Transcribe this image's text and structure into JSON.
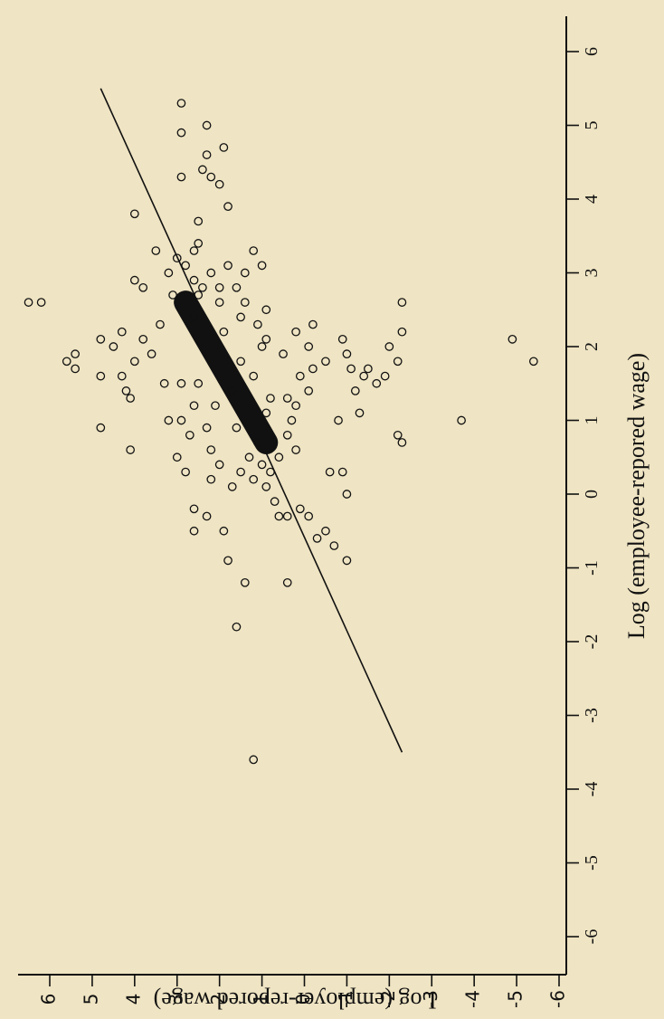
{
  "chart_data": {
    "type": "scatter",
    "orientation": "rotated-90-counterclockwise",
    "xlabel": "Log (employee-repored wage)",
    "ylabel": "Log (employer-repored wage)",
    "xlim": [
      -6,
      6
    ],
    "ylim": [
      -6,
      6
    ],
    "xticks": [
      "-6",
      "-5",
      "-4",
      "-3",
      "-2",
      "-1",
      "0",
      "1",
      "2",
      "3",
      "4",
      "5",
      "6"
    ],
    "yticks": [
      "-6",
      "-5",
      "-4",
      "-3",
      "-2",
      "-1",
      "0",
      "1",
      "2",
      "3",
      "4",
      "5",
      "6"
    ],
    "grid": false,
    "marker": "hollow-circle",
    "colors": {
      "background": "#efe4c3",
      "ink": "#111111"
    },
    "fit_line": {
      "x": [
        -3.5,
        5.5
      ],
      "y": [
        -2.3,
        4.8
      ]
    },
    "dense_core": {
      "x": [
        0.7,
        2.6
      ],
      "y": [
        0.9,
        2.8
      ]
    },
    "points": [
      [
        2.6,
        6.2
      ],
      [
        2.6,
        6.5
      ],
      [
        1.7,
        5.4
      ],
      [
        1.9,
        5.4
      ],
      [
        1.8,
        5.6
      ],
      [
        2.1,
        4.8
      ],
      [
        2.0,
        4.5
      ],
      [
        2.2,
        4.3
      ],
      [
        1.6,
        4.8
      ],
      [
        0.9,
        4.8
      ],
      [
        3.8,
        4.0
      ],
      [
        2.9,
        4.0
      ],
      [
        3.3,
        3.5
      ],
      [
        2.8,
        3.8
      ],
      [
        1.8,
        4.0
      ],
      [
        1.6,
        4.3
      ],
      [
        1.4,
        4.2
      ],
      [
        1.3,
        4.1
      ],
      [
        0.6,
        4.1
      ],
      [
        2.1,
        3.8
      ],
      [
        1.9,
        3.6
      ],
      [
        2.3,
        3.4
      ],
      [
        1.5,
        3.3
      ],
      [
        1.0,
        3.2
      ],
      [
        0.5,
        3.0
      ],
      [
        0.3,
        2.8
      ],
      [
        0.8,
        2.7
      ],
      [
        1.0,
        2.9
      ],
      [
        3.2,
        3.0
      ],
      [
        3.1,
        2.8
      ],
      [
        3.0,
        3.2
      ],
      [
        2.7,
        3.1
      ],
      [
        2.9,
        2.6
      ],
      [
        2.8,
        2.4
      ],
      [
        1.5,
        2.9
      ],
      [
        1.2,
        2.6
      ],
      [
        0.9,
        2.3
      ],
      [
        0.6,
        2.2
      ],
      [
        0.4,
        2.0
      ],
      [
        0.2,
        2.2
      ],
      [
        -0.2,
        2.6
      ],
      [
        -0.3,
        2.3
      ],
      [
        -0.5,
        2.6
      ],
      [
        -0.9,
        1.8
      ],
      [
        -1.2,
        1.4
      ],
      [
        -1.8,
        1.6
      ],
      [
        -1.2,
        0.4
      ],
      [
        -3.6,
        1.2
      ],
      [
        -0.5,
        1.9
      ],
      [
        0.1,
        1.7
      ],
      [
        0.3,
        1.5
      ],
      [
        0.5,
        1.3
      ],
      [
        0.7,
        1.1
      ],
      [
        0.3,
        0.8
      ],
      [
        0.1,
        0.9
      ],
      [
        -0.1,
        0.7
      ],
      [
        -0.3,
        0.6
      ],
      [
        -0.3,
        0.4
      ],
      [
        -0.2,
        0.1
      ],
      [
        -0.3,
        -0.1
      ],
      [
        -0.5,
        -0.5
      ],
      [
        -0.6,
        -0.3
      ],
      [
        -0.7,
        -0.7
      ],
      [
        -0.9,
        -1.0
      ],
      [
        0.3,
        -0.6
      ],
      [
        0.0,
        -1.0
      ],
      [
        0.6,
        0.2
      ],
      [
        0.8,
        0.4
      ],
      [
        1.0,
        0.3
      ],
      [
        1.2,
        0.2
      ],
      [
        1.3,
        0.4
      ],
      [
        1.4,
        -0.1
      ],
      [
        1.6,
        0.1
      ],
      [
        1.8,
        -0.5
      ],
      [
        1.7,
        -0.2
      ],
      [
        2.0,
        -0.1
      ],
      [
        2.2,
        0.2
      ],
      [
        2.3,
        -0.2
      ],
      [
        1.9,
        0.5
      ],
      [
        2.1,
        0.9
      ],
      [
        2.3,
        1.1
      ],
      [
        2.5,
        0.9
      ],
      [
        2.6,
        1.4
      ],
      [
        2.8,
        1.6
      ],
      [
        3.0,
        1.4
      ],
      [
        3.1,
        1.0
      ],
      [
        2.0,
        1.0
      ],
      [
        1.7,
        -1.1
      ],
      [
        1.9,
        -1.0
      ],
      [
        2.1,
        -0.9
      ],
      [
        1.6,
        -1.4
      ],
      [
        1.7,
        -1.5
      ],
      [
        1.6,
        -1.9
      ],
      [
        1.8,
        -2.2
      ],
      [
        2.0,
        -2.0
      ],
      [
        2.2,
        -2.3
      ],
      [
        2.6,
        -2.3
      ],
      [
        0.8,
        -2.2
      ],
      [
        0.7,
        -2.3
      ],
      [
        1.5,
        -1.7
      ],
      [
        1.4,
        -1.2
      ],
      [
        1.1,
        -1.3
      ],
      [
        1.0,
        -0.8
      ],
      [
        0.3,
        -0.9
      ],
      [
        1.0,
        -3.7
      ],
      [
        2.1,
        -4.9
      ],
      [
        1.8,
        -5.4
      ],
      [
        4.3,
        2.9
      ],
      [
        4.9,
        2.9
      ],
      [
        5.3,
        2.9
      ],
      [
        5.0,
        2.3
      ],
      [
        4.6,
        2.3
      ],
      [
        4.4,
        2.4
      ],
      [
        4.3,
        2.2
      ],
      [
        4.7,
        1.9
      ],
      [
        3.9,
        1.8
      ],
      [
        4.2,
        2.0
      ],
      [
        3.7,
        2.5
      ],
      [
        3.4,
        2.5
      ],
      [
        3.3,
        2.6
      ],
      [
        3.0,
        2.2
      ],
      [
        2.8,
        2.0
      ],
      [
        3.3,
        1.2
      ],
      [
        3.1,
        1.8
      ],
      [
        1.5,
        2.5
      ],
      [
        1.2,
        2.1
      ],
      [
        0.9,
        1.6
      ],
      [
        1.6,
        1.2
      ],
      [
        2.4,
        1.5
      ],
      [
        2.2,
        1.9
      ],
      [
        1.8,
        1.5
      ],
      [
        1.4,
        1.7
      ],
      [
        2.6,
        2.0
      ],
      [
        2.4,
        2.6
      ],
      [
        2.7,
        2.5
      ],
      [
        0.5,
        0.6
      ],
      [
        0.4,
        1.0
      ],
      [
        0.2,
        1.2
      ],
      [
        1.1,
        0.9
      ],
      [
        1.3,
        0.8
      ]
    ]
  }
}
